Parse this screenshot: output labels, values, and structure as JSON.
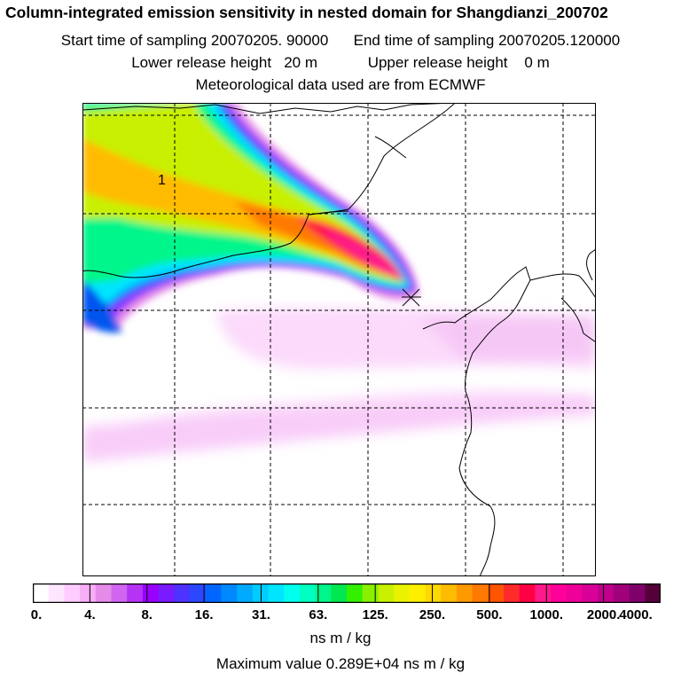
{
  "header": {
    "title": "Column-integrated emission sensitivity in nested domain for Shangdianzi_200702",
    "line2_start": "Start time of sampling 20070205. 90000",
    "line2_end": "End time of sampling 20070205.120000",
    "line3_lower": "Lower release height   20 m",
    "line3_upper": "Upper release height    0 m",
    "line4": "Meteorological data used are from ECMWF"
  },
  "map": {
    "label_1": "1",
    "station_marker": "x-marker"
  },
  "legend": {
    "colors": [
      "#ffffff",
      "#ffe6ff",
      "#ffccff",
      "#f7aef7",
      "#e58be8",
      "#d066f0",
      "#b533f5",
      "#9900ff",
      "#7a1aff",
      "#4d33ff",
      "#2b48ff",
      "#0066ff",
      "#0088ff",
      "#00aaff",
      "#00ccff",
      "#00e5ff",
      "#00ffee",
      "#00ffc0",
      "#00f58a",
      "#00e850",
      "#33f000",
      "#88f000",
      "#c8f000",
      "#eaf200",
      "#ffee00",
      "#ffd800",
      "#ffbb00",
      "#ff9900",
      "#ff7a00",
      "#ff5500",
      "#ff2a2a",
      "#ff0044",
      "#ff1a8c",
      "#ff0099",
      "#ee0099",
      "#d80099",
      "#c0008c",
      "#a0007a",
      "#80006a",
      "#55003a"
    ],
    "tick_labels": [
      "0.",
      "4.",
      "8.",
      "16.",
      "31.",
      "63.",
      "125.",
      "250.",
      "500.",
      "1000.",
      "2000.",
      "4000."
    ],
    "unit": "ns m / kg",
    "max_value": "Maximum value  0.289E+04 ns m / kg"
  }
}
